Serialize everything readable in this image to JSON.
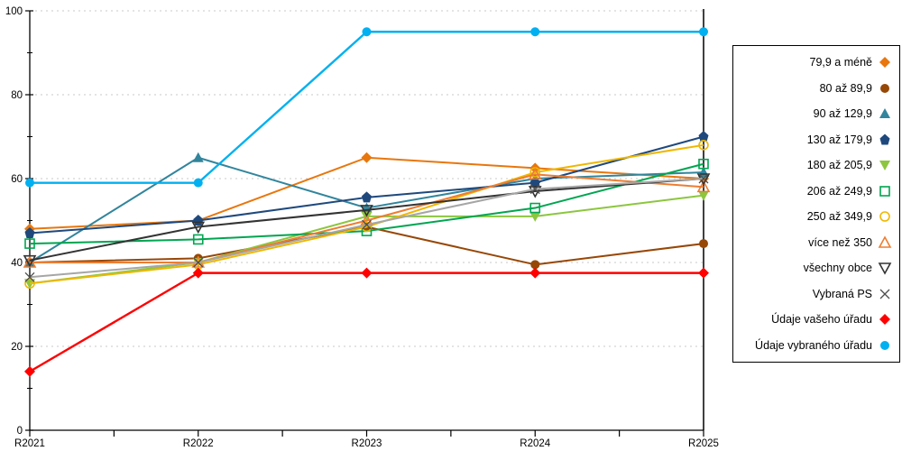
{
  "chart_data": {
    "type": "line",
    "title": "",
    "xlabel": "",
    "ylabel": "",
    "categories": [
      "R2021",
      "R2022",
      "R2023",
      "R2024",
      "R2025"
    ],
    "ylim": [
      0,
      100
    ],
    "y_ticks": [
      0,
      20,
      40,
      60,
      80,
      100
    ],
    "y_minor_step": 10,
    "grid": "horizontal-dashed",
    "legend_position": "right",
    "reference_line_x": "R2025",
    "series": [
      {
        "name": "79,9 a méně",
        "marker": "diamond-filled",
        "color": "#E8770D",
        "values": [
          48,
          50,
          65,
          62.5,
          60
        ]
      },
      {
        "name": "80 až 89,9",
        "marker": "circle-filled",
        "color": "#974706",
        "values": [
          40,
          41,
          48.5,
          39.5,
          44.5
        ]
      },
      {
        "name": "90 až 129,9",
        "marker": "triangle-up-filled",
        "color": "#31859C",
        "values": [
          40,
          65,
          53,
          60,
          61.5
        ]
      },
      {
        "name": "130 až 179,9",
        "marker": "pentagon-filled",
        "color": "#1F497D",
        "values": [
          47,
          50,
          55.5,
          59,
          70
        ]
      },
      {
        "name": "180 až 205,9",
        "marker": "triangle-down-filled",
        "color": "#8CC63E",
        "values": [
          35,
          40,
          51,
          51,
          56
        ]
      },
      {
        "name": "206 až 249,9",
        "marker": "square-open",
        "color": "#00A550",
        "values": [
          44.5,
          45.5,
          47.5,
          53,
          63.5
        ]
      },
      {
        "name": "250 až 349,9",
        "marker": "circle-open",
        "color": "#EFB700",
        "values": [
          35,
          39.5,
          48.5,
          61.5,
          68
        ]
      },
      {
        "name": "více než 350",
        "marker": "triangle-up-open",
        "color": "#ED7D31",
        "values": [
          40,
          40,
          50,
          61,
          58
        ]
      },
      {
        "name": "všechny obce",
        "marker": "triangle-down-open",
        "color": "#333333",
        "values": [
          40.5,
          48.5,
          52.5,
          57,
          60
        ]
      },
      {
        "name": "Vybraná PS",
        "marker": "x",
        "color": "#A6A6A6",
        "marker_color": "#4D4D4D",
        "values": [
          36.5,
          40,
          49,
          57.5,
          60
        ]
      },
      {
        "name": "Údaje vašeho úřadu",
        "marker": "diamond-filled",
        "color": "#FF0000",
        "values": [
          14,
          37.5,
          37.5,
          37.5,
          37.5
        ]
      },
      {
        "name": "Údaje vybraného úřadu",
        "marker": "circle-filled",
        "color": "#00B0F0",
        "values": [
          59,
          59,
          95,
          95,
          95
        ]
      }
    ]
  },
  "colors": {
    "axis": "#000000",
    "gridline": "#C8C8C8",
    "text": "#000000",
    "background": "#FFFFFF"
  }
}
